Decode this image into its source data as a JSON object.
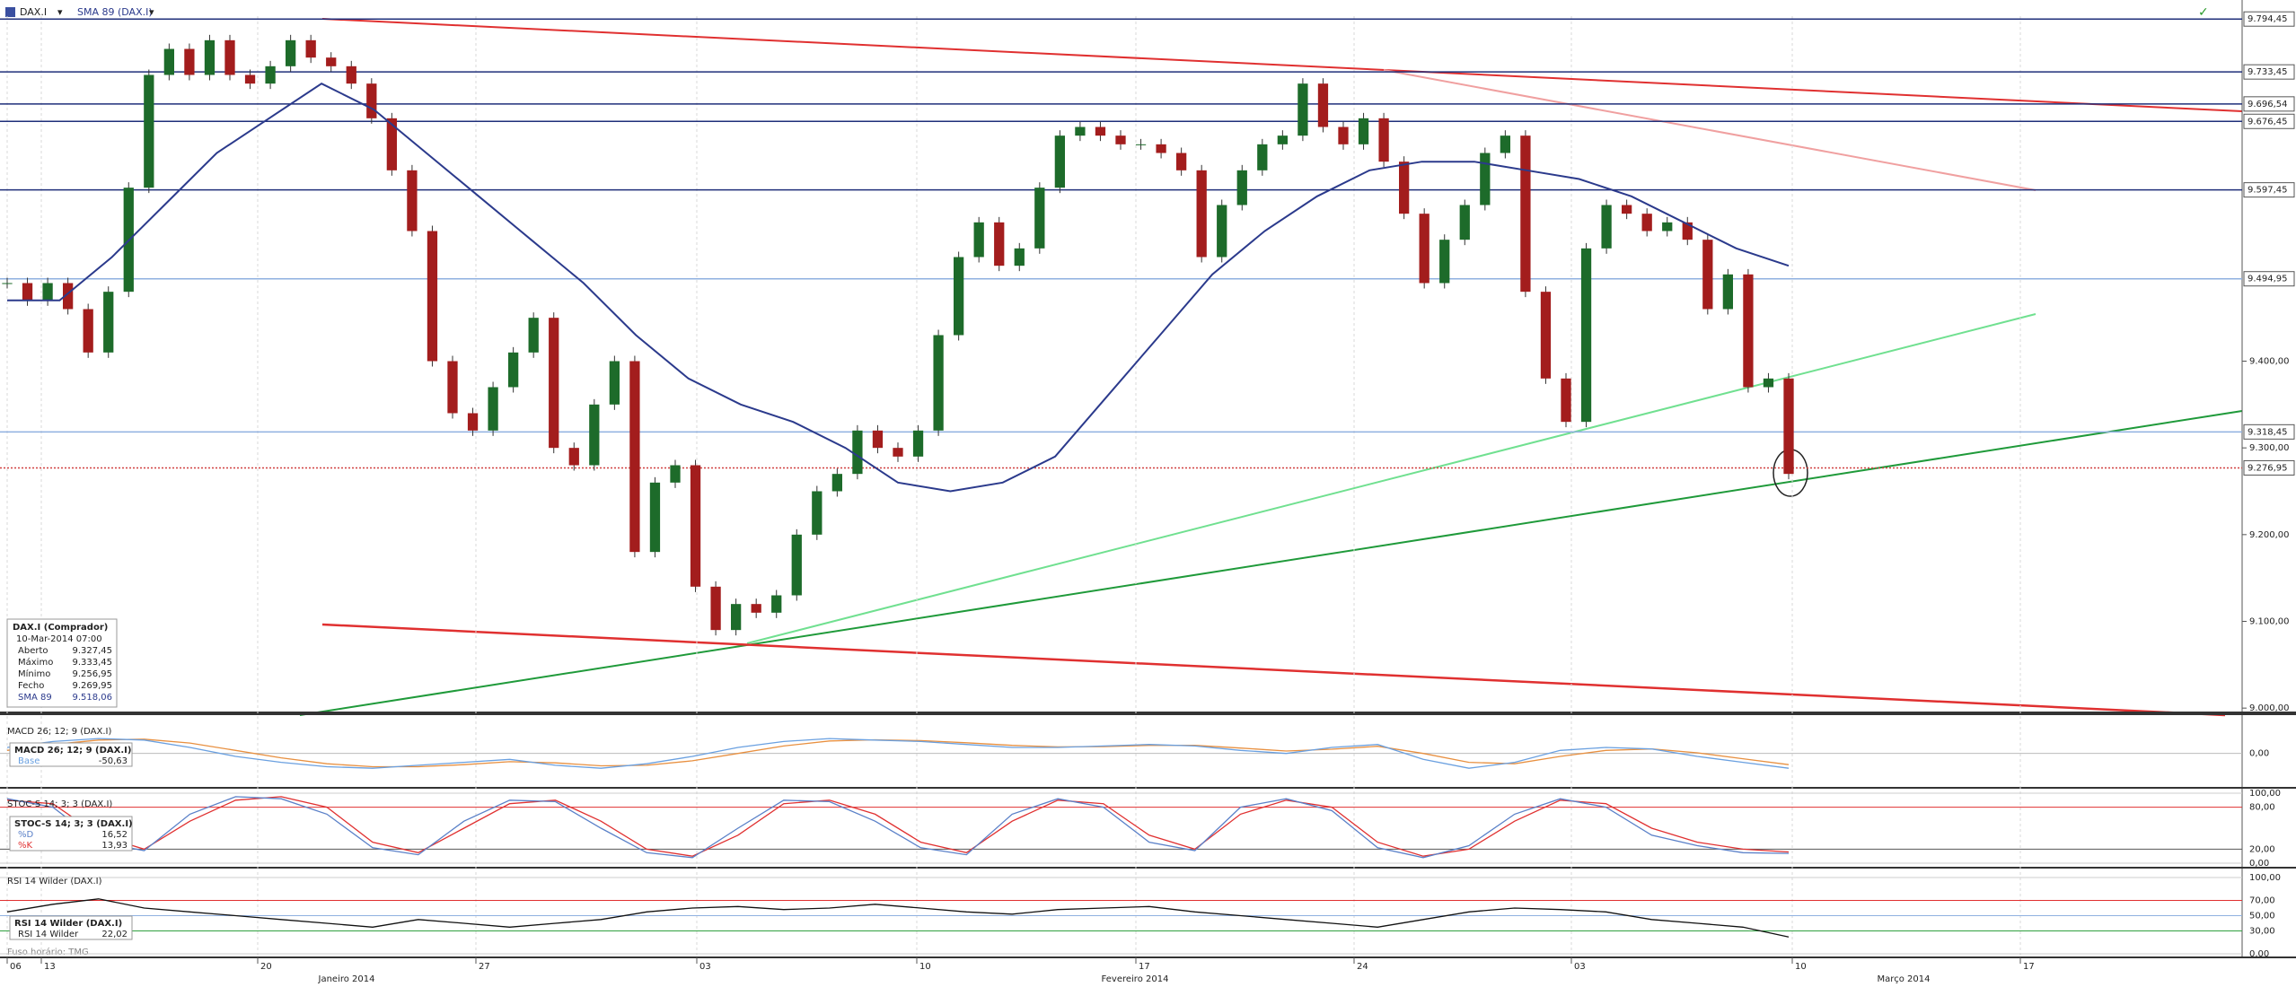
{
  "header": {
    "symbol": "DAX.I",
    "indicator": "SMA 89 (DAX.I)"
  },
  "main": {
    "ylim": [
      8995,
      9805
    ],
    "yticks": [
      {
        "value": 9400,
        "label": "9.400,00"
      },
      {
        "value": 9300,
        "label": "9.300,00"
      },
      {
        "value": 9200,
        "label": "9.200,00"
      },
      {
        "value": 9100,
        "label": "9.100,00"
      },
      {
        "value": 9000,
        "label": "9.000,00"
      }
    ],
    "levels": [
      {
        "value": 9794.45,
        "label": "9.794,45",
        "color": "#1f2f7a"
      },
      {
        "value": 9733.45,
        "label": "9.733,45",
        "color": "#1f2f7a"
      },
      {
        "value": 9696.54,
        "label": "9.696,54",
        "color": "#1f2f7a"
      },
      {
        "value": 9676.45,
        "label": "9.676,45",
        "color": "#1f2f7a"
      },
      {
        "value": 9597.45,
        "label": "9.597,45",
        "color": "#1f2f7a"
      },
      {
        "value": 9494.95,
        "label": "9.494,95",
        "color": "#8fb0e0"
      },
      {
        "value": 9318.45,
        "label": "9.318,45",
        "color": "#8fb0e0"
      },
      {
        "value": 9276.95,
        "label": "9.276,95",
        "color": "#d04040"
      }
    ],
    "up_color": "#1d6b2a",
    "down_color": "#a31d1d",
    "sma_color": "#2b3a8c",
    "price": [
      9490,
      9470,
      9490,
      9460,
      9410,
      9480,
      9600,
      9730,
      9760,
      9730,
      9770,
      9730,
      9720,
      9740,
      9770,
      9750,
      9740,
      9720,
      9680,
      9620,
      9550,
      9400,
      9340,
      9320,
      9370,
      9410,
      9450,
      9300,
      9280,
      9350,
      9400,
      9180,
      9260,
      9280,
      9140,
      9090,
      9120,
      9110,
      9130,
      9200,
      9250,
      9270,
      9320,
      9300,
      9290,
      9320,
      9430,
      9520,
      9560,
      9510,
      9530,
      9600,
      9660,
      9670,
      9660,
      9650,
      9650,
      9640,
      9620,
      9520,
      9580,
      9620,
      9650,
      9660,
      9720,
      9670,
      9650,
      9680,
      9630,
      9570,
      9490,
      9540,
      9580,
      9640,
      9660,
      9480,
      9380,
      9330,
      9530,
      9580,
      9570,
      9550,
      9560,
      9540,
      9460,
      9500,
      9370,
      9380,
      9270
    ],
    "sma": [
      9470,
      9470,
      9520,
      9580,
      9640,
      9680,
      9720,
      9690,
      9640,
      9590,
      9540,
      9490,
      9430,
      9380,
      9350,
      9330,
      9300,
      9260,
      9250,
      9260,
      9290,
      9360,
      9430,
      9500,
      9550,
      9590,
      9620,
      9630,
      9630,
      9620,
      9610,
      9590,
      9560,
      9530,
      9510
    ]
  },
  "info_box": {
    "title": "DAX.I (Comprador)",
    "date": "10-Mar-2014 07:00",
    "rows": [
      {
        "label": "Aberto",
        "value": "9.327,45"
      },
      {
        "label": "Máximo",
        "value": "9.333,45"
      },
      {
        "label": "Mínimo",
        "value": "9.256,95"
      },
      {
        "label": "Fecho",
        "value": "9.269,95"
      },
      {
        "label": "SMA 89",
        "value": "9.518,06"
      }
    ]
  },
  "macd": {
    "title": "MACD 26; 12; 9 (DAX.I)",
    "box_title": "MACD 26; 12; 9 (DAX.I)",
    "rows": [
      {
        "label": "Base",
        "value": "-50,63"
      }
    ],
    "ylim": [
      -110,
      120
    ],
    "yticks": [
      {
        "value": 0,
        "label": "0,00",
        "color": "#bbbbbb"
      }
    ],
    "series": [
      {
        "color": "#e89040",
        "values": [
          10,
          30,
          45,
          48,
          35,
          10,
          -15,
          -35,
          -45,
          -45,
          -38,
          -28,
          -32,
          -42,
          -40,
          -25,
          0,
          25,
          42,
          46,
          43,
          36,
          27,
          22,
          23,
          27,
          27,
          18,
          8,
          14,
          24,
          0,
          -30,
          -35,
          -10,
          10,
          15,
          2,
          -18,
          -38
        ]
      },
      {
        "color": "#6aa0e0",
        "values": [
          20,
          40,
          50,
          45,
          20,
          -10,
          -30,
          -45,
          -50,
          -40,
          -30,
          -20,
          -40,
          -50,
          -35,
          -10,
          20,
          40,
          50,
          45,
          40,
          30,
          20,
          20,
          25,
          30,
          25,
          10,
          0,
          20,
          30,
          -20,
          -50,
          -30,
          10,
          20,
          15,
          -10,
          -30,
          -50
        ]
      }
    ]
  },
  "stoch": {
    "title": "STOC-S 14; 3; 3 (DAX.I)",
    "box_title": "STOC-S 14; 3; 3 (DAX.I)",
    "rows": [
      {
        "label": "%D",
        "value": "16,52"
      },
      {
        "label": "%K",
        "value": "13,93"
      }
    ],
    "ylim": [
      0,
      100
    ],
    "yticks": [
      {
        "value": 100,
        "label": "100,00",
        "color": "#cccccc"
      },
      {
        "value": 80,
        "label": "80,00",
        "color": "#e03030"
      },
      {
        "value": 20,
        "label": "20,00",
        "color": "#555555"
      },
      {
        "value": 0,
        "label": "0,00",
        "color": "#cccccc"
      }
    ],
    "series": [
      {
        "color": "#e03030",
        "values": [
          90,
          85,
          40,
          20,
          60,
          90,
          95,
          80,
          30,
          15,
          50,
          85,
          90,
          60,
          20,
          10,
          40,
          85,
          90,
          70,
          30,
          15,
          60,
          90,
          85,
          40,
          20,
          70,
          90,
          80,
          30,
          10,
          20,
          60,
          90,
          85,
          50,
          30,
          20,
          16
        ]
      },
      {
        "color": "#5a80c8",
        "values": [
          92,
          80,
          30,
          18,
          70,
          95,
          92,
          70,
          22,
          12,
          60,
          90,
          88,
          50,
          15,
          8,
          50,
          90,
          88,
          60,
          22,
          12,
          70,
          92,
          80,
          30,
          18,
          80,
          92,
          75,
          22,
          8,
          25,
          70,
          92,
          80,
          40,
          25,
          15,
          14
        ]
      }
    ]
  },
  "rsi": {
    "title": "RSI 14 Wilder (DAX.I)",
    "box_title": "RSI 14 Wilder (DAX.I)",
    "rows": [
      {
        "label": "RSI 14 Wilder",
        "value": "22,02"
      }
    ],
    "ylim": [
      0,
      100
    ],
    "yticks": [
      {
        "value": 100,
        "label": "100,00",
        "color": "#cccccc"
      },
      {
        "value": 70,
        "label": "70,00",
        "color": "#e03030"
      },
      {
        "value": 50,
        "label": "50,00",
        "color": "#8fb0e0"
      },
      {
        "value": 30,
        "label": "30,00",
        "color": "#30a040"
      },
      {
        "value": 0,
        "label": "0,00",
        "color": "#cccccc"
      }
    ],
    "series": [
      {
        "color": "#111111",
        "values": [
          55,
          65,
          72,
          60,
          55,
          50,
          45,
          40,
          35,
          45,
          40,
          35,
          40,
          45,
          55,
          60,
          62,
          58,
          60,
          65,
          60,
          55,
          52,
          58,
          60,
          62,
          55,
          50,
          45,
          40,
          35,
          45,
          55,
          60,
          58,
          55,
          45,
          40,
          35,
          22
        ]
      }
    ]
  },
  "xaxis": {
    "ticks": [
      "06",
      "13",
      "20",
      "27",
      "03",
      "10",
      "17",
      "24",
      "03",
      "10",
      "17"
    ],
    "months": [
      "Janeiro 2014",
      "Fevereiro 2014",
      "Março 2014"
    ]
  },
  "footer": "Fuso horário: TMG"
}
